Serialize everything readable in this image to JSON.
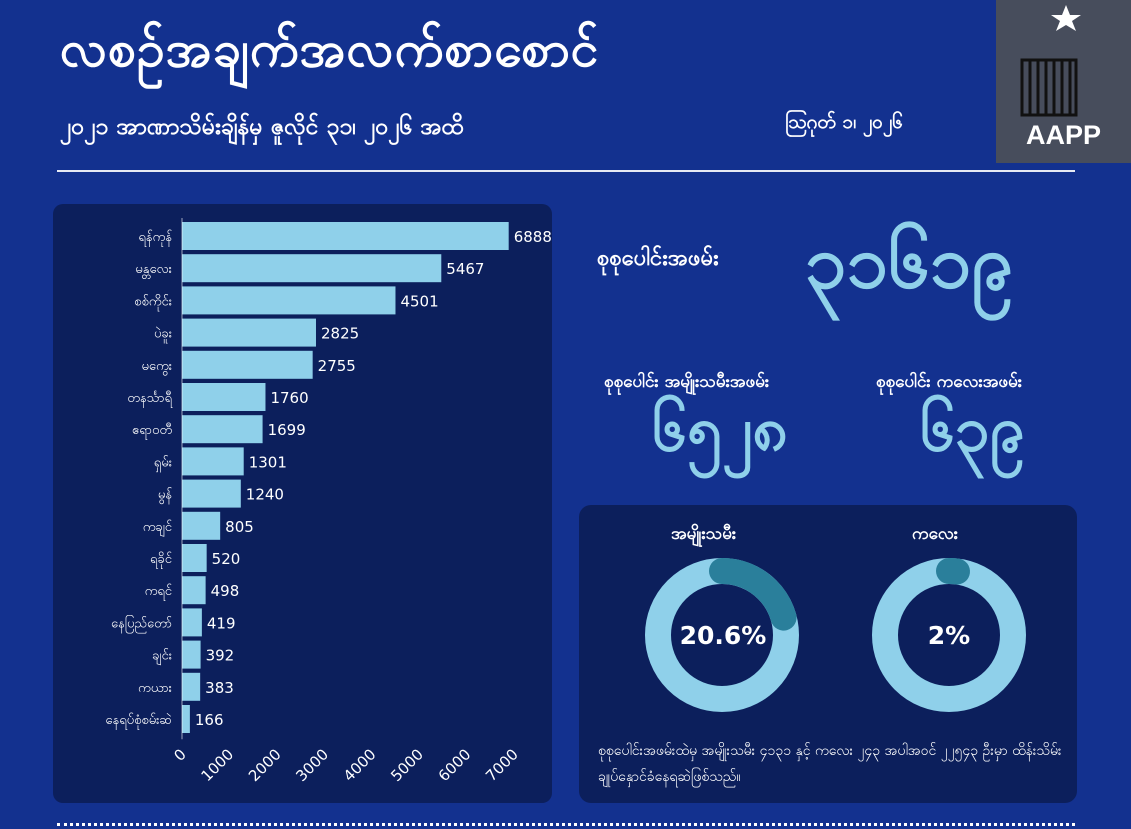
{
  "header": {
    "title": "လစဉ်အချက်အလက်စာစောင်",
    "subtitle": "၂၀၂၁ အာဏာသိမ်းချိန်မှ ဇူလိုင် ၃၁၊ ၂၀၂၆ အထိ",
    "date": "သြဂုတ် ၁၊ ၂၀၂၆"
  },
  "logo": {
    "text": "AAPP",
    "icon": "crescent-star-prison-bars-icon"
  },
  "totals": {
    "total_label": "စုစုပေါင်းအဖမ်း",
    "total_value": "၃၁၆၁၉",
    "women_label": "စုစုပေါင်း အမျိုးသမီးအဖမ်း",
    "women_value": "၆၅၂၈",
    "children_label": "စုစုပေါင်း ကလေးအဖမ်း",
    "children_value": "၆၃၉"
  },
  "donuts": [
    {
      "label": "အမျိုးသမီး",
      "percent_text": "20.6%",
      "fraction": 0.206
    },
    {
      "label": "ကလေး",
      "percent_text": "2%",
      "fraction": 0.02
    }
  ],
  "note": "စုစုပေါင်းအဖမ်းထဲမှ အမျိုးသမီး ၄၁၃၁ နှင့် ကလေး ၂၄၃ အပါအဝင် ၂၂၅၄၃ ဦးမှာ ထိန်းသိမ်းချုပ်နှောင်ခံနေရဆဲဖြစ်သည်။",
  "colors": {
    "background": "#13318f",
    "panel": "#0c1f5c",
    "accent": "#8fd0ea",
    "donut_highlight": "#2a7f9b"
  },
  "chart_data": {
    "type": "bar",
    "orientation": "horizontal",
    "categories": [
      "ရန်ကုန်",
      "မန္တလေး",
      "စစ်ကိုင်း",
      "ပဲခူး",
      "မကွေး",
      "တနင်္သာရီ",
      "ဧရာဝတီ",
      "ရှမ်း",
      "မွန်",
      "ကချင်",
      "ရခိုင်",
      "ကရင်",
      "နေပြည်တော်",
      "ချင်း",
      "ကယား",
      "နေရပ်စုံစမ်းဆဲ"
    ],
    "values": [
      6888,
      5467,
      4501,
      2825,
      2755,
      1760,
      1699,
      1301,
      1240,
      805,
      520,
      498,
      419,
      392,
      383,
      166
    ],
    "value_labels": [
      "6888",
      "5467",
      "4501",
      "2825",
      "2755",
      "1760",
      "1699",
      "1301",
      "1240",
      "805",
      "520",
      "498",
      "419",
      "392",
      "383",
      "166"
    ],
    "xticks": [
      "0",
      "1000",
      "2000",
      "3000",
      "4000",
      "5000",
      "6000",
      "7000"
    ],
    "xlim": [
      0,
      7000
    ],
    "color": "#8fd0ea",
    "grid": false
  }
}
